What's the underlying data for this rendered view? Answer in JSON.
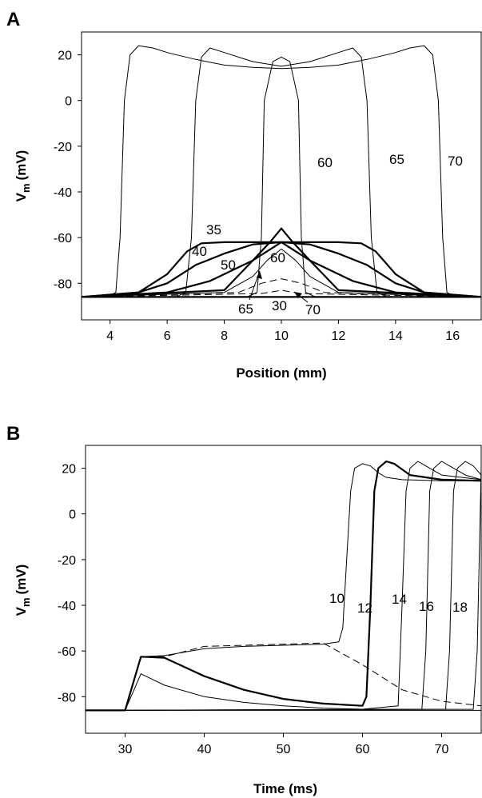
{
  "chart_data": [
    {
      "panel": "A",
      "type": "line",
      "xlabel": "Position (mm)",
      "ylabel_main": "V",
      "ylabel_sub": "m",
      "ylabel_unit": "(mV)",
      "xlim": [
        3,
        17
      ],
      "ylim": [
        -96,
        30
      ],
      "xticks": [
        "4",
        "6",
        "8",
        "10",
        "12",
        "14",
        "16"
      ],
      "xtick_values": [
        4,
        6,
        8,
        10,
        12,
        14,
        16
      ],
      "yticks": [
        "20",
        "0",
        "-20",
        "-40",
        "-60",
        "-80"
      ],
      "ytick_values": [
        20,
        0,
        -20,
        -40,
        -60,
        -80
      ],
      "annotations": [
        "60",
        "65",
        "70",
        "35",
        "40",
        "50",
        "60",
        "65",
        "30",
        "70"
      ],
      "series": [
        {
          "x": [
            3,
            9.3,
            9.8,
            10,
            10.2,
            10.7,
            17
          ],
          "y": [
            -86,
            -84.5,
            -83.5,
            -83,
            -83.5,
            -84.5,
            -86
          ],
          "style": "dashed"
        },
        {
          "x": [
            3,
            8.5,
            9.3,
            10,
            10.7,
            11.5,
            17
          ],
          "y": [
            -86,
            -84,
            -80,
            -78,
            -80,
            -84,
            -86
          ],
          "style": "dashed"
        },
        {
          "x": [
            3,
            8,
            9,
            9.5,
            10,
            10.5,
            11,
            12,
            17
          ],
          "y": [
            -86,
            -84,
            -77,
            -70,
            -65,
            -70,
            -77,
            -84,
            -86
          ],
          "style": "thin"
        },
        {
          "x": [
            3,
            8,
            9,
            9.6,
            10,
            10.4,
            11,
            12,
            17
          ],
          "y": [
            -86,
            -83,
            -70,
            -62,
            -56,
            -62,
            -70,
            -83,
            -86
          ],
          "style": "thick"
        },
        {
          "x": [
            3,
            6,
            7.5,
            9,
            10,
            11,
            12.5,
            14,
            17
          ],
          "y": [
            -86,
            -84,
            -79,
            -70,
            -62,
            -70,
            -79,
            -84,
            -86
          ],
          "style": "thick"
        },
        {
          "x": [
            3,
            5,
            6,
            7,
            8,
            9,
            10,
            11,
            12,
            13,
            14,
            15,
            17
          ],
          "y": [
            -86,
            -84,
            -80,
            -72,
            -67,
            -63,
            -62,
            -63,
            -67,
            -72,
            -80,
            -84,
            -86
          ],
          "style": "thick"
        },
        {
          "x": [
            3,
            5,
            6,
            6.7,
            7.2,
            8,
            9,
            10,
            11,
            12,
            12.8,
            13.3,
            14,
            15,
            17
          ],
          "y": [
            -86,
            -84,
            -76,
            -66,
            -62.5,
            -62,
            -62,
            -62,
            -62,
            -62,
            -62.5,
            -66,
            -76,
            -84,
            -86
          ],
          "style": "thick"
        },
        {
          "x": [
            3,
            8.8,
            9.15,
            9.3,
            9.4,
            9.7,
            10,
            10.3,
            10.6,
            10.7,
            10.85,
            11.2,
            17
          ],
          "y": [
            -86,
            -86,
            -84,
            -60,
            0,
            17,
            19,
            17,
            0,
            -60,
            -84,
            -86,
            -86
          ],
          "style": "thin"
        },
        {
          "x": [
            3,
            6.3,
            6.65,
            6.85,
            7.0,
            7.2,
            7.5,
            8,
            9,
            10,
            11,
            12,
            12.5,
            12.8,
            13.0,
            13.15,
            13.35,
            13.7,
            17
          ],
          "y": [
            -86,
            -86,
            -84,
            -60,
            0,
            19,
            23,
            21,
            17,
            15,
            17,
            21,
            23,
            19,
            0,
            -60,
            -84,
            -86,
            -86
          ],
          "style": "thin"
        },
        {
          "x": [
            3,
            3.9,
            4.2,
            4.35,
            4.5,
            4.7,
            5,
            5.5,
            6,
            7,
            8,
            9,
            10,
            11,
            12,
            13,
            14,
            14.5,
            15,
            15.3,
            15.5,
            15.65,
            15.8,
            16.1,
            17
          ],
          "y": [
            -86,
            -86,
            -84,
            -60,
            0,
            20,
            24,
            23,
            21,
            18,
            15.5,
            14.5,
            14,
            14.5,
            15.5,
            18,
            21,
            23,
            24,
            20,
            0,
            -60,
            -84,
            -86,
            -86
          ],
          "style": "thin"
        },
        {
          "x": [
            3,
            17
          ],
          "y": [
            -86,
            -86
          ],
          "style": "thick"
        }
      ]
    },
    {
      "panel": "B",
      "type": "line",
      "xlabel": "Time (ms)",
      "ylabel_main": "V",
      "ylabel_sub": "m",
      "ylabel_unit": "(mV)",
      "xlim": [
        25,
        75
      ],
      "ylim": [
        -96,
        30
      ],
      "xticks": [
        "30",
        "40",
        "50",
        "60",
        "70"
      ],
      "xtick_values": [
        30,
        40,
        50,
        60,
        70
      ],
      "yticks": [
        "20",
        "0",
        "-20",
        "-40",
        "-60",
        "-80"
      ],
      "ytick_values": [
        20,
        0,
        -20,
        -40,
        -60,
        -80
      ],
      "annotations": [
        "10",
        "12",
        "14",
        "16",
        "18"
      ],
      "series": [
        {
          "x": [
            25,
            30,
            32,
            35,
            40,
            45,
            50,
            55,
            60,
            65,
            70,
            75
          ],
          "y": [
            -86,
            -86,
            -62.5,
            -62.5,
            -58,
            -57.5,
            -57,
            -56.5,
            -66,
            -77,
            -82,
            -84
          ],
          "style": "dashed"
        },
        {
          "x": [
            25,
            30,
            32,
            35,
            40,
            45,
            50,
            55,
            57,
            57.5,
            58,
            58.5,
            59,
            60,
            61,
            62,
            63,
            65,
            70,
            75
          ],
          "y": [
            -86,
            -86,
            -62.5,
            -62,
            -59,
            -58,
            -57.5,
            -57,
            -56,
            -50,
            -20,
            10,
            20,
            22,
            21,
            18,
            16,
            15,
            14.5,
            14.5
          ],
          "style": "thin"
        },
        {
          "x": [
            25,
            30,
            32,
            35,
            40,
            45,
            50,
            55,
            60,
            60.5,
            61,
            61.5,
            62,
            63,
            64,
            66,
            70,
            75
          ],
          "y": [
            -86,
            -86,
            -62.5,
            -63,
            -71,
            -77,
            -81,
            -83,
            -84,
            -80,
            -40,
            10,
            20,
            23,
            22,
            17,
            15,
            14.5
          ],
          "style": "thick"
        },
        {
          "x": [
            25,
            30,
            32,
            35,
            40,
            45,
            50,
            55,
            60,
            64.5,
            65,
            65.5,
            66,
            67,
            68,
            70,
            75
          ],
          "y": [
            -86,
            -86,
            -70,
            -75,
            -80,
            -82.5,
            -84,
            -85,
            -85.5,
            -84,
            -40,
            10,
            20,
            23,
            21,
            17,
            15
          ],
          "style": "thin"
        },
        {
          "x": [
            25,
            67.5,
            68,
            68.5,
            69,
            70,
            71,
            73,
            75
          ],
          "y": [
            -86,
            -85.5,
            -60,
            10,
            20,
            23,
            21,
            17,
            15
          ],
          "style": "thin"
        },
        {
          "x": [
            25,
            70.5,
            71,
            71.5,
            72,
            73,
            74,
            75
          ],
          "y": [
            -86,
            -85.5,
            -60,
            10,
            20,
            23,
            21,
            17
          ],
          "style": "thin"
        },
        {
          "x": [
            25,
            74,
            74.5,
            75
          ],
          "y": [
            -86,
            -85.5,
            -60,
            20
          ],
          "style": "thin"
        },
        {
          "x": [
            25,
            75
          ],
          "y": [
            -86,
            -86
          ],
          "style": "thin"
        }
      ]
    }
  ]
}
